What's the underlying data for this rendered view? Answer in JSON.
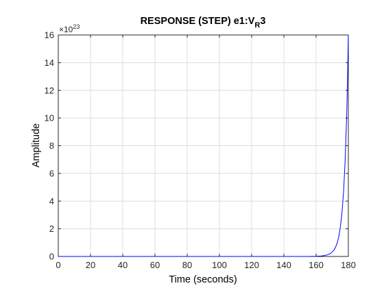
{
  "chart_data": {
    "type": "line",
    "title": "RESPONSE (STEP) e1:V",
    "title_subscript": "R",
    "title_suffix": "3",
    "xlabel": "Time (seconds)",
    "ylabel": "Amplitude",
    "y_exponent_label": "×10",
    "y_exponent_power": "23",
    "xlim": [
      0,
      180
    ],
    "ylim": [
      0,
      16
    ],
    "x_ticks": [
      0,
      20,
      40,
      60,
      80,
      100,
      120,
      140,
      160,
      180
    ],
    "y_ticks": [
      0,
      2,
      4,
      6,
      8,
      10,
      12,
      14,
      16
    ],
    "grid": true,
    "series": [
      {
        "color": "#0000ff",
        "x": [
          0,
          20,
          40,
          60,
          80,
          100,
          120,
          140,
          155,
          160,
          163,
          165,
          167,
          169,
          171,
          172,
          173,
          174,
          175,
          176,
          177,
          178,
          179,
          179.5,
          180
        ],
        "y": [
          0,
          0,
          0,
          0,
          0,
          0,
          0,
          0,
          0,
          0.01,
          0.03,
          0.06,
          0.12,
          0.22,
          0.45,
          0.65,
          0.95,
          1.4,
          2.1,
          3.1,
          4.6,
          6.9,
          10.3,
          12.8,
          16
        ]
      }
    ]
  }
}
